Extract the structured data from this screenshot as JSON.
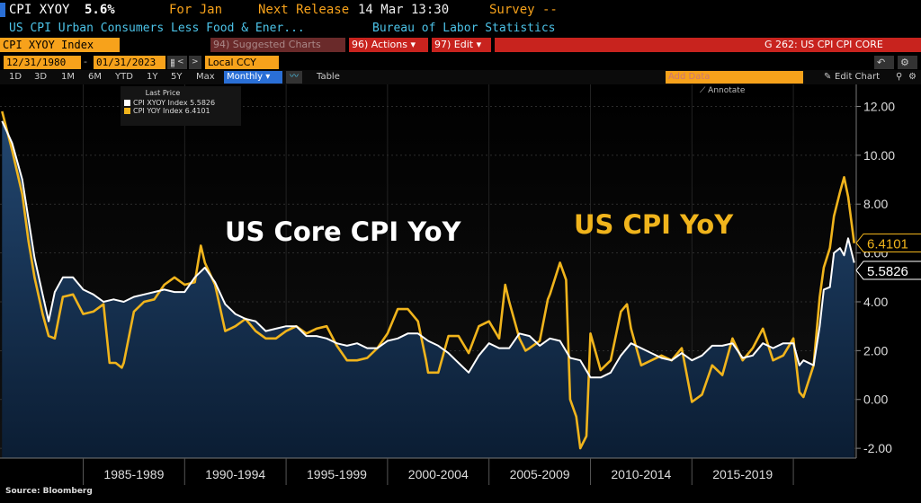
{
  "header": {
    "ticker": "CPI XYOY",
    "value": "5.6%",
    "for_label": "For Jan",
    "next_release_label": "Next Release",
    "next_release_date": "14 Mar 13:30",
    "survey_label": "Survey --",
    "description": "US CPI Urban Consumers Less Food & Ener...",
    "source": "Bureau of Labor Statistics"
  },
  "toolbar": {
    "security_field": "CPI XYOY Index",
    "suggested_charts": "94) Suggested Charts",
    "actions": "96) Actions ▾",
    "edit": "97) Edit ▾",
    "graph_id": "G 262: US CPI CPI CORE",
    "start_date": "12/31/1980",
    "end_date": "01/31/2023",
    "currency": "Local CCY",
    "periods": [
      "1D",
      "3D",
      "1M",
      "6M",
      "YTD",
      "1Y",
      "5Y",
      "Max"
    ],
    "frequency": "Monthly ▾",
    "table": "Table",
    "add_data": "Add Data",
    "edit_chart": "Edit Chart",
    "annotate": "Annotate"
  },
  "legend": {
    "title": "Last Price",
    "items": [
      {
        "label": "CPI XYOY Index 5.5826",
        "color": "#ffffff"
      },
      {
        "label": "CPI YOY Index  6.4101",
        "color": "#f0b41c"
      }
    ]
  },
  "footer": {
    "source": "Source: Bloomberg"
  },
  "colors": {
    "core": "#ffffff",
    "headline": "#f0b41c",
    "area_top": "#1d3a5c",
    "area_bottom": "#0d2038"
  },
  "chart_data": {
    "type": "line",
    "title": "",
    "annotations": [
      {
        "text": "US Core CPI YoY",
        "color": "#ffffff"
      },
      {
        "text": "US CPI YoY",
        "color": "#f0b41c"
      }
    ],
    "xlim": [
      1980.9,
      2023.1
    ],
    "ylim": [
      -2.4,
      12.9
    ],
    "y_ticks": [
      -2.0,
      0.0,
      2.0,
      4.0,
      6.0,
      8.0,
      10.0,
      12.0
    ],
    "y_tick_labels": [
      "-2.00",
      "0.00",
      "2.00",
      "4.00",
      "6.00",
      "8.00",
      "10.00",
      "12.00"
    ],
    "x_period_labels": [
      "1985-1989",
      "1990-1994",
      "1995-1999",
      "2000-2004",
      "2005-2009",
      "2010-2014",
      "2015-2019"
    ],
    "x_period_bounds": [
      1985,
      1990,
      1995,
      2000,
      2005,
      2010,
      2015,
      2020
    ],
    "last_values": [
      {
        "series": "CPI XYOY Index",
        "label": "5.5826",
        "value": 5.5826
      },
      {
        "series": "CPI YOY Index",
        "label": "6.4101",
        "value": 6.4101
      }
    ],
    "series": [
      {
        "name": "CPI XYOY Index",
        "color": "#ffffff",
        "area": true,
        "x": [
          1981.0,
          1981.5,
          1982.0,
          1982.3,
          1982.6,
          1983.0,
          1983.3,
          1983.6,
          1984.0,
          1984.5,
          1985.0,
          1985.5,
          1986.0,
          1986.5,
          1987.0,
          1987.5,
          1988.0,
          1988.5,
          1989.0,
          1989.5,
          1990.0,
          1990.5,
          1991.0,
          1991.5,
          1992.0,
          1992.5,
          1993.0,
          1993.5,
          1994.0,
          1994.5,
          1995.0,
          1995.5,
          1996.0,
          1996.5,
          1997.0,
          1997.5,
          1998.0,
          1998.5,
          1999.0,
          1999.5,
          2000.0,
          2000.5,
          2001.0,
          2001.5,
          2002.0,
          2002.5,
          2003.0,
          2003.5,
          2004.0,
          2004.5,
          2005.0,
          2005.5,
          2006.0,
          2006.5,
          2007.0,
          2007.5,
          2008.0,
          2008.5,
          2009.0,
          2009.5,
          2010.0,
          2010.5,
          2011.0,
          2011.5,
          2012.0,
          2012.5,
          2013.0,
          2013.5,
          2014.0,
          2014.5,
          2015.0,
          2015.5,
          2016.0,
          2016.5,
          2017.0,
          2017.5,
          2018.0,
          2018.5,
          2019.0,
          2019.5,
          2020.0,
          2020.3,
          2020.5,
          2021.0,
          2021.3,
          2021.5,
          2021.8,
          2022.0,
          2022.3,
          2022.5,
          2022.7,
          2023.0
        ],
        "y": [
          11.4,
          10.5,
          9.0,
          7.4,
          5.8,
          4.3,
          3.2,
          4.4,
          5.0,
          5.0,
          4.5,
          4.3,
          4.0,
          4.1,
          4.0,
          4.2,
          4.3,
          4.4,
          4.5,
          4.4,
          4.4,
          5.0,
          5.4,
          4.8,
          3.9,
          3.5,
          3.3,
          3.2,
          2.8,
          2.9,
          3.0,
          3.0,
          2.6,
          2.6,
          2.5,
          2.3,
          2.2,
          2.3,
          2.1,
          2.1,
          2.4,
          2.5,
          2.7,
          2.7,
          2.4,
          2.2,
          1.9,
          1.5,
          1.1,
          1.8,
          2.3,
          2.1,
          2.1,
          2.7,
          2.6,
          2.2,
          2.5,
          2.4,
          1.7,
          1.6,
          0.9,
          0.9,
          1.1,
          1.8,
          2.3,
          2.1,
          1.9,
          1.7,
          1.6,
          1.9,
          1.6,
          1.8,
          2.2,
          2.2,
          2.3,
          1.7,
          1.8,
          2.3,
          2.1,
          2.3,
          2.3,
          1.4,
          1.6,
          1.4,
          3.0,
          4.5,
          4.6,
          6.0,
          6.2,
          5.9,
          6.6,
          5.6
        ]
      },
      {
        "name": "CPI YOY Index",
        "color": "#f0b41c",
        "area": false,
        "x": [
          1981.0,
          1981.5,
          1982.0,
          1982.3,
          1982.6,
          1983.0,
          1983.3,
          1983.6,
          1984.0,
          1984.5,
          1985.0,
          1985.5,
          1986.0,
          1986.3,
          1986.6,
          1986.9,
          1987.0,
          1987.5,
          1988.0,
          1988.5,
          1989.0,
          1989.5,
          1990.0,
          1990.5,
          1990.8,
          1991.0,
          1991.5,
          1992.0,
          1992.5,
          1993.0,
          1993.5,
          1994.0,
          1994.5,
          1995.0,
          1995.5,
          1996.0,
          1996.5,
          1997.0,
          1997.5,
          1998.0,
          1998.5,
          1999.0,
          1999.5,
          2000.0,
          2000.5,
          2001.0,
          2001.5,
          2001.9,
          2002.0,
          2002.5,
          2003.0,
          2003.5,
          2004.0,
          2004.5,
          2005.0,
          2005.5,
          2005.8,
          2006.0,
          2006.5,
          2006.8,
          2007.0,
          2007.5,
          2007.9,
          2008.0,
          2008.5,
          2008.8,
          2009.0,
          2009.3,
          2009.5,
          2009.8,
          2010.0,
          2010.5,
          2011.0,
          2011.5,
          2011.8,
          2012.0,
          2012.5,
          2013.0,
          2013.5,
          2014.0,
          2014.5,
          2015.0,
          2015.5,
          2016.0,
          2016.5,
          2017.0,
          2017.5,
          2018.0,
          2018.5,
          2019.0,
          2019.5,
          2020.0,
          2020.3,
          2020.5,
          2021.0,
          2021.3,
          2021.5,
          2021.8,
          2022.0,
          2022.3,
          2022.5,
          2022.7,
          2023.0
        ],
        "y": [
          11.8,
          10.2,
          8.4,
          6.5,
          5.0,
          3.5,
          2.6,
          2.5,
          4.2,
          4.3,
          3.5,
          3.6,
          3.9,
          1.5,
          1.5,
          1.3,
          1.5,
          3.6,
          4.0,
          4.1,
          4.7,
          5.0,
          4.7,
          4.8,
          6.3,
          5.6,
          4.7,
          2.8,
          3.0,
          3.3,
          2.8,
          2.5,
          2.5,
          2.8,
          3.0,
          2.7,
          2.9,
          3.0,
          2.2,
          1.6,
          1.6,
          1.7,
          2.1,
          2.7,
          3.7,
          3.7,
          3.2,
          1.6,
          1.1,
          1.1,
          2.6,
          2.6,
          1.9,
          3.0,
          3.2,
          2.5,
          4.7,
          4.0,
          2.5,
          2.0,
          2.1,
          2.4,
          4.1,
          4.3,
          5.6,
          4.9,
          0.0,
          -0.7,
          -2.0,
          -1.5,
          2.7,
          1.2,
          1.6,
          3.6,
          3.9,
          2.9,
          1.4,
          1.6,
          1.8,
          1.6,
          2.1,
          -0.1,
          0.2,
          1.4,
          1.0,
          2.5,
          1.6,
          2.1,
          2.9,
          1.6,
          1.8,
          2.5,
          0.3,
          0.1,
          1.4,
          4.2,
          5.4,
          6.2,
          7.5,
          8.5,
          9.1,
          8.3,
          6.4
        ]
      }
    ]
  }
}
